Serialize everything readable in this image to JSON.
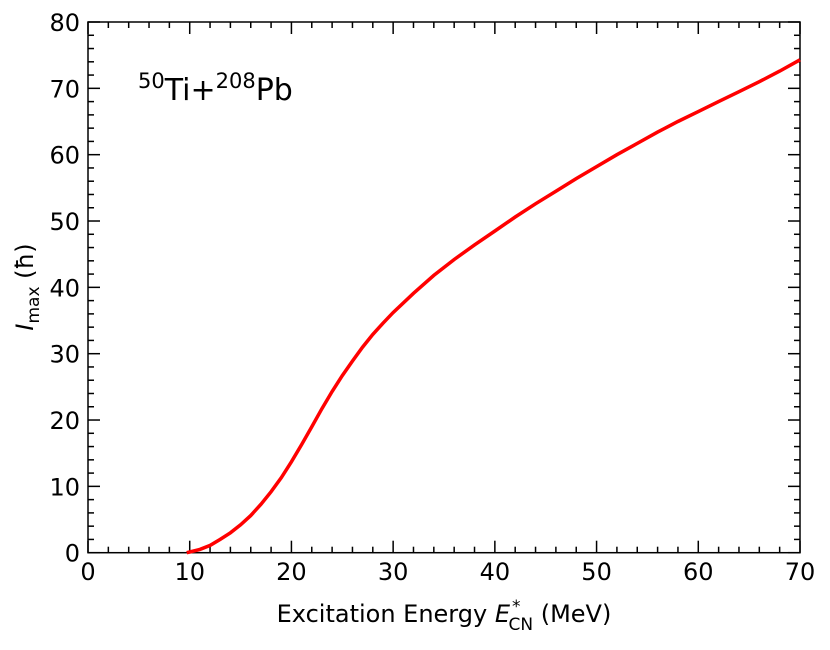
{
  "chart_data": {
    "type": "line",
    "annotation": {
      "mass1": "50",
      "el1": "Ti+",
      "mass2": "208",
      "el2": "Pb"
    },
    "xlabel": {
      "text": "Excitation Energy ",
      "sym": "E",
      "sup": "*",
      "sub": "CN",
      "unit": " (MeV)"
    },
    "ylabel": {
      "sym": "I",
      "sub": "max",
      "unit": " (ħ)"
    },
    "xlim": [
      0,
      70
    ],
    "ylim": [
      0,
      80
    ],
    "xticks": [
      0,
      10,
      20,
      30,
      40,
      50,
      60,
      70
    ],
    "yticks": [
      0,
      10,
      20,
      30,
      40,
      50,
      60,
      70,
      80
    ],
    "grid": false,
    "series": [
      {
        "color": "#ff0000",
        "x": [
          9.7,
          10,
          11,
          12,
          13,
          14,
          15,
          16,
          17,
          18,
          19,
          20,
          21,
          22,
          23,
          24,
          25,
          26,
          27,
          28,
          29,
          30,
          32,
          34,
          36,
          38,
          40,
          42,
          44,
          46,
          48,
          50,
          52,
          54,
          56,
          58,
          60,
          62,
          64,
          66,
          68,
          70
        ],
        "y": [
          0,
          0.1,
          0.5,
          1.1,
          2,
          3,
          4.2,
          5.6,
          7.3,
          9.2,
          11.3,
          13.7,
          16.3,
          19,
          21.7,
          24.3,
          26.7,
          28.9,
          31,
          32.9,
          34.6,
          36.2,
          39.1,
          41.8,
          44.2,
          46.4,
          48.5,
          50.6,
          52.6,
          54.5,
          56.4,
          58.2,
          60,
          61.7,
          63.4,
          65,
          66.5,
          68,
          69.5,
          71,
          72.6,
          74.3
        ]
      }
    ]
  }
}
